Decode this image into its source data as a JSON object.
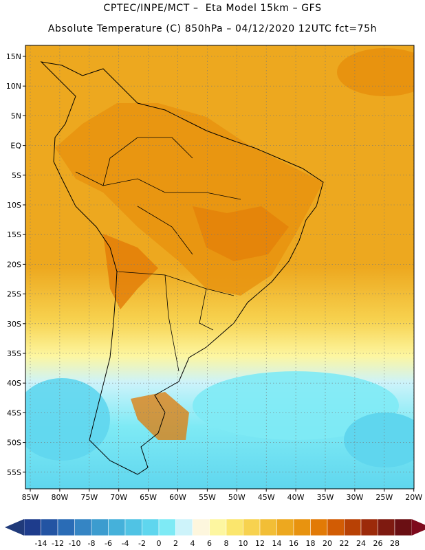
{
  "header": {
    "line1": "CPTEC/INPE/MCT –  Eta Model 15km – GFS",
    "line2": "Absolute Temperature (C) 850hPa – 04/12/2020 12UTC fct=75h"
  },
  "map": {
    "lat_labels": [
      "15N",
      "10N",
      "5N",
      "EQ",
      "5S",
      "10S",
      "15S",
      "20S",
      "25S",
      "30S",
      "35S",
      "40S",
      "45S",
      "50S",
      "55S"
    ],
    "lon_labels": [
      "85W",
      "80W",
      "75W",
      "70W",
      "65W",
      "60W",
      "55W",
      "50W",
      "45W",
      "40W",
      "35W",
      "30W",
      "25W",
      "20W"
    ],
    "gridlines": "dotted"
  },
  "colorbar": {
    "labels": [
      "-14",
      "-12",
      "-10",
      "-8",
      "-6",
      "-4",
      "-2",
      "0",
      "2",
      "4",
      "6",
      "8",
      "10",
      "12",
      "14",
      "16",
      "18",
      "20",
      "22",
      "24",
      "26",
      "28"
    ],
    "colors": [
      "#1e3c8c",
      "#2354a3",
      "#2a6cb6",
      "#3585c4",
      "#3c9ccf",
      "#45b1da",
      "#50c3e4",
      "#5fd6ee",
      "#7eeaf5",
      "#cdf3fa",
      "#fdf6dd",
      "#fdf6a0",
      "#fbe66d",
      "#f7d24f",
      "#f2be36",
      "#eda81f",
      "#e8930f",
      "#e27a06",
      "#d25c04",
      "#b84105",
      "#9c2a0a",
      "#7e1a10",
      "#6a0f13"
    ],
    "low_arrow_color": "#203a7a",
    "high_arrow_color": "#7e0a1c"
  }
}
